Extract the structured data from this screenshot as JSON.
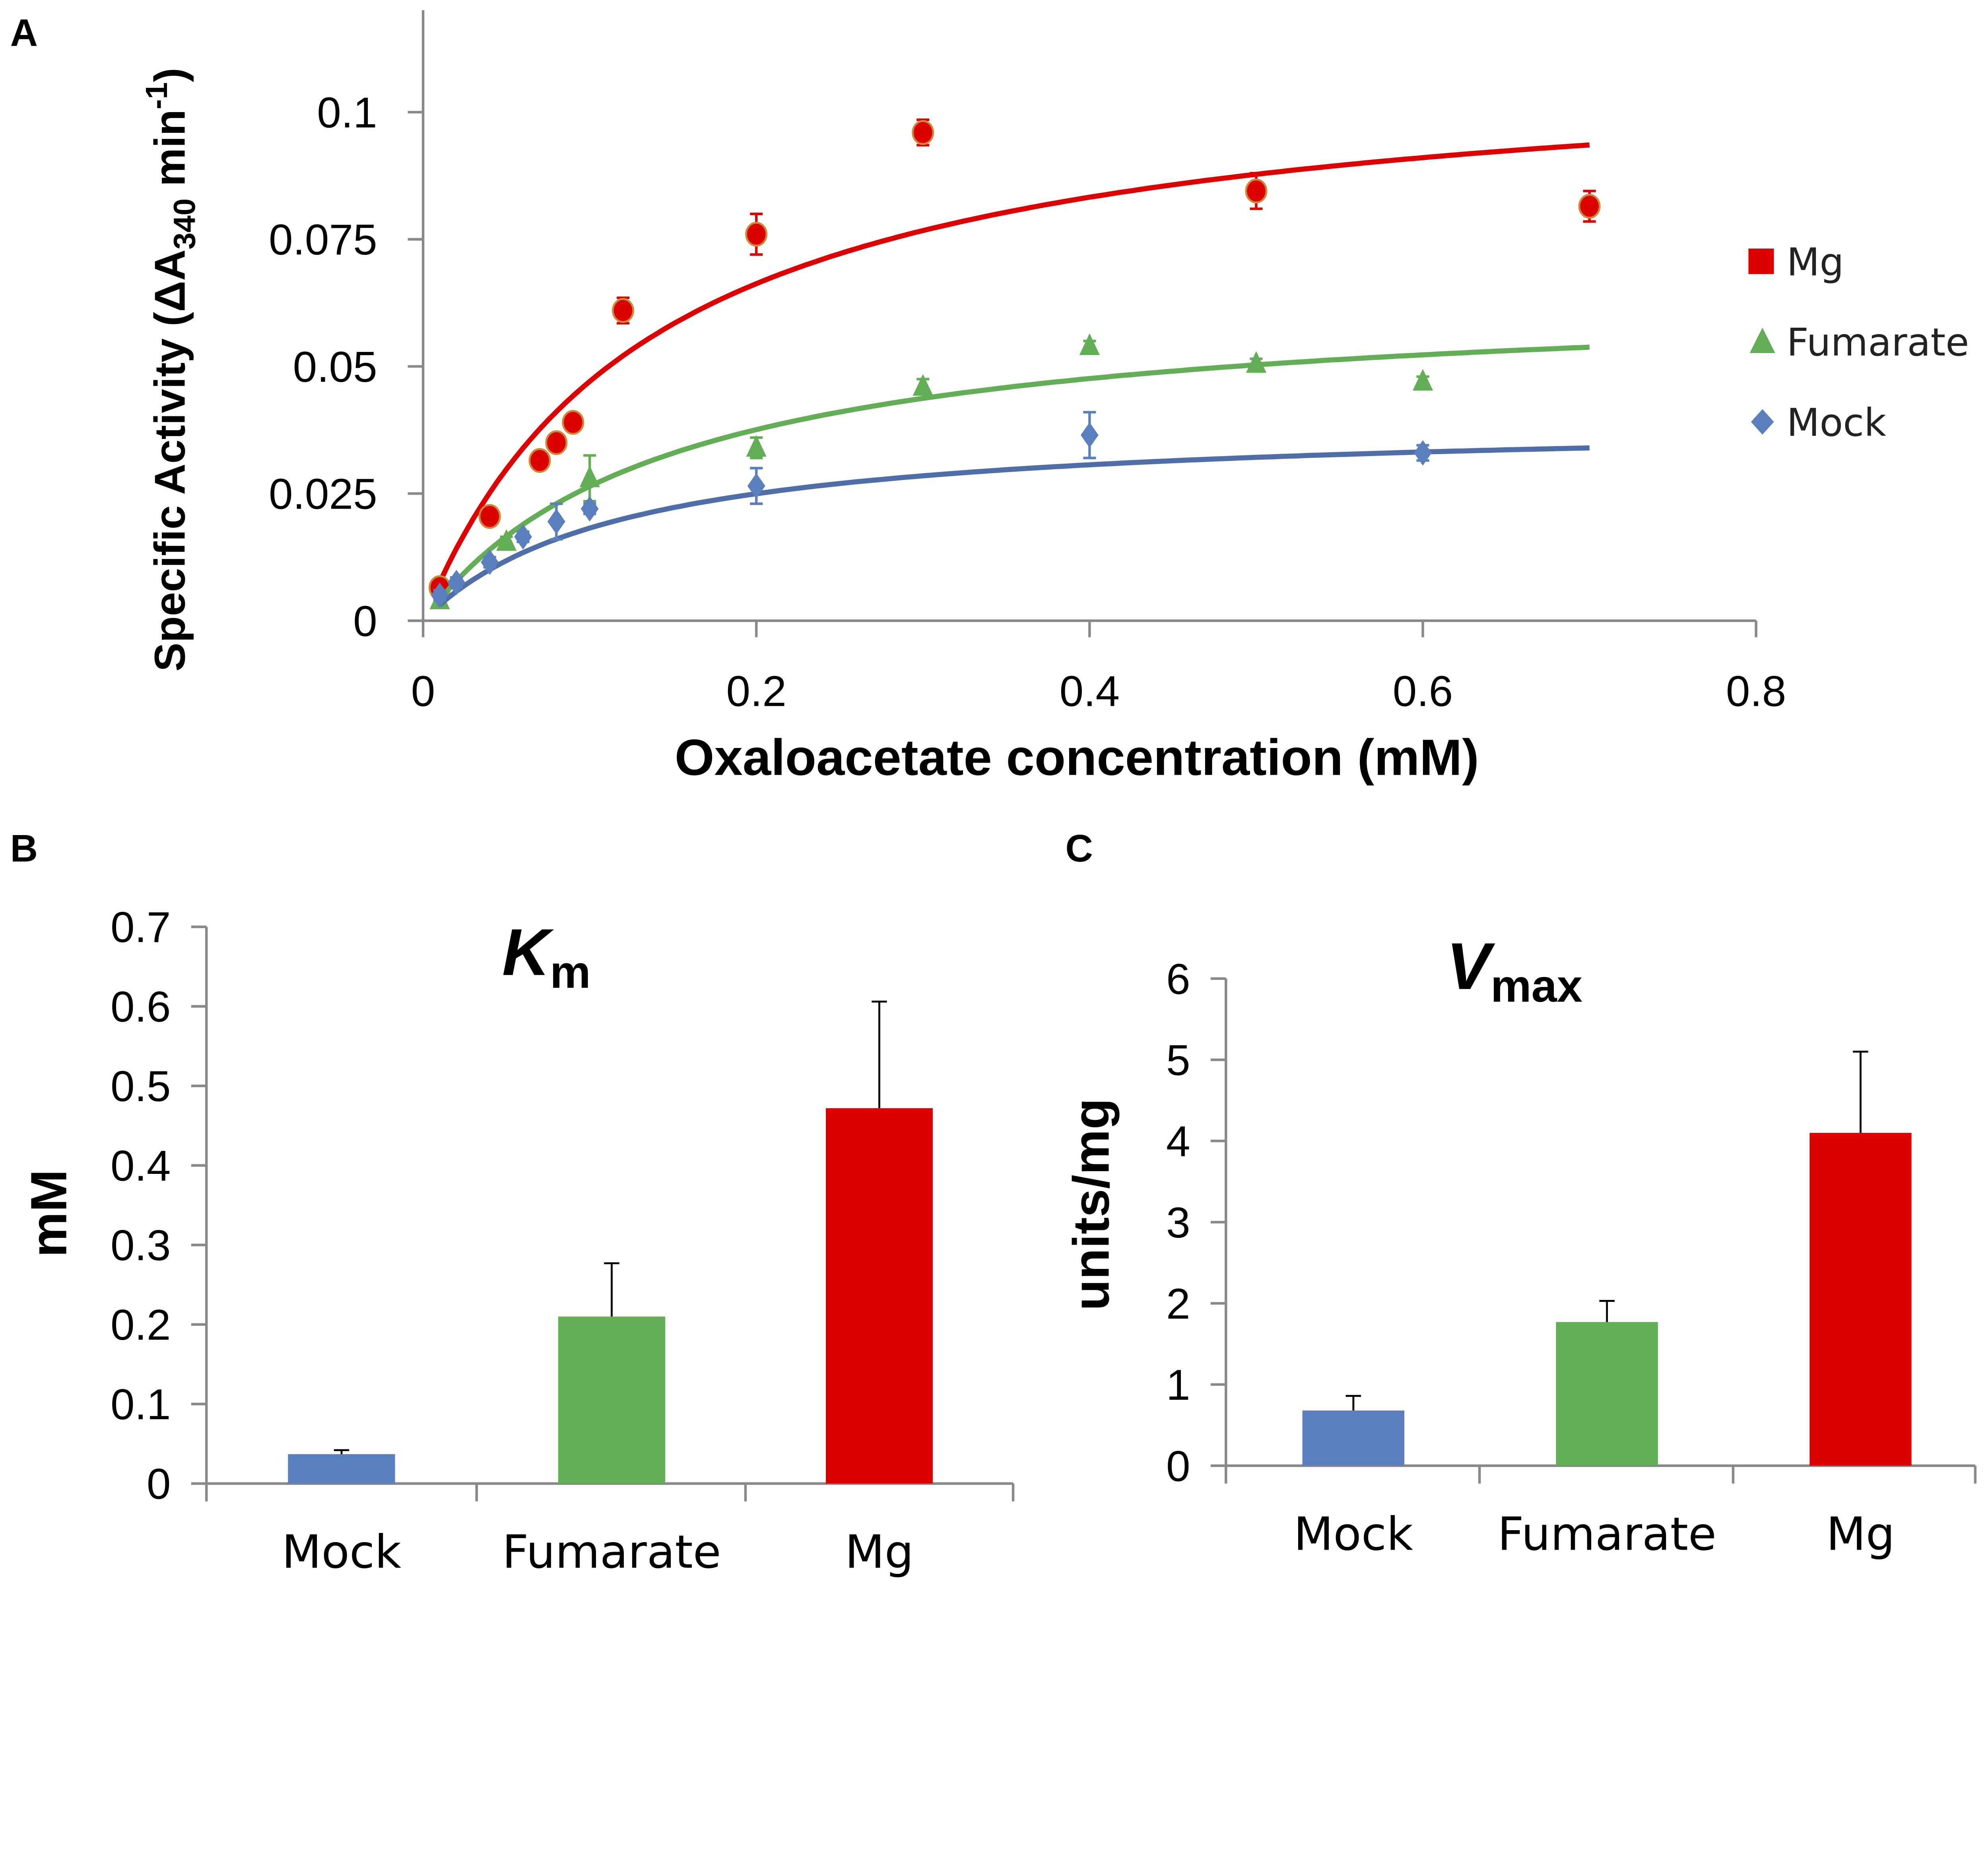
{
  "chart_data": [
    {
      "panel": "A",
      "type": "scatter",
      "xlabel": "Oxaloacetate concentration (mM)",
      "ylabel_parts": {
        "pre": "Specific Activity (ΔA",
        "sub": "340",
        "mid": " min",
        "sup": "-1",
        "post": ")"
      },
      "xlim": [
        0,
        0.8
      ],
      "ylim": [
        0,
        0.12
      ],
      "xticks": [
        "0",
        "0.2",
        "0.4",
        "0.6",
        "0.8"
      ],
      "yticks": [
        "0",
        "0.025",
        "0.05",
        "0.075",
        "0.1"
      ],
      "legend_position": "right",
      "series": [
        {
          "name": "Mg",
          "color": "#DD0000",
          "marker": "circle",
          "fit": {
            "vmax": 0.112,
            "km": 0.138
          },
          "points": [
            [
              0.01,
              0.0065,
              0.001
            ],
            [
              0.04,
              0.0205,
              0.001
            ],
            [
              0.07,
              0.0315,
              0.001
            ],
            [
              0.08,
              0.035,
              0.001
            ],
            [
              0.09,
              0.039,
              0.001
            ],
            [
              0.12,
              0.061,
              0.0025
            ],
            [
              0.2,
              0.076,
              0.004
            ],
            [
              0.3,
              0.096,
              0.0025
            ],
            [
              0.5,
              0.0845,
              0.0035
            ],
            [
              0.7,
              0.0815,
              0.003
            ]
          ]
        },
        {
          "name": "Fumarate",
          "color": "#62AD55",
          "marker": "triangle",
          "fit": {
            "vmax": 0.065,
            "km": 0.146
          },
          "points": [
            [
              0.01,
              0.004,
              0.001
            ],
            [
              0.05,
              0.0155,
              0.001
            ],
            [
              0.1,
              0.028,
              0.0045
            ],
            [
              0.2,
              0.034,
              0.002
            ],
            [
              0.3,
              0.046,
              0.0015
            ],
            [
              0.4,
              0.054,
              0.001
            ],
            [
              0.5,
              0.0505,
              0.001
            ],
            [
              0.6,
              0.047,
              0.001
            ]
          ]
        },
        {
          "name": "Mock",
          "color": "#5B7FBD",
          "marker": "diamond",
          "fit": {
            "vmax": 0.0397,
            "km": 0.118
          },
          "points": [
            [
              0.01,
              0.005,
              0.001
            ],
            [
              0.02,
              0.0075,
              0.001
            ],
            [
              0.04,
              0.0115,
              0.001
            ],
            [
              0.06,
              0.0165,
              0.001
            ],
            [
              0.08,
              0.0195,
              0.0035
            ],
            [
              0.1,
              0.022,
              0.001
            ],
            [
              0.2,
              0.0265,
              0.0035
            ],
            [
              0.4,
              0.0365,
              0.0045
            ],
            [
              0.6,
              0.033,
              0.0015
            ]
          ]
        }
      ]
    },
    {
      "panel": "B",
      "type": "bar",
      "title_main": "K",
      "title_sub": "m",
      "ylabel": "mM",
      "ylim": [
        0,
        0.7
      ],
      "yticks": [
        "0",
        "0.1",
        "0.2",
        "0.3",
        "0.4",
        "0.5",
        "0.6",
        "0.7"
      ],
      "categories": [
        "Mock",
        "Fumarate",
        "Mg"
      ],
      "values": [
        0.037,
        0.21,
        0.472
      ],
      "errors": [
        0.005,
        0.067,
        0.134
      ],
      "colors": [
        "#5B7FBD",
        "#62AD55",
        "#DD0000"
      ]
    },
    {
      "panel": "C",
      "type": "bar",
      "title_main": "V",
      "title_sub": "max",
      "ylabel": "units/mg",
      "ylim": [
        0,
        6
      ],
      "yticks": [
        "0",
        "1",
        "2",
        "3",
        "4",
        "5",
        "6"
      ],
      "categories": [
        "Mock",
        "Fumarate",
        "Mg"
      ],
      "values": [
        0.68,
        1.77,
        4.1
      ],
      "errors": [
        0.18,
        0.26,
        1.0
      ],
      "colors": [
        "#5B7FBD",
        "#62AD55",
        "#DD0000"
      ]
    }
  ]
}
